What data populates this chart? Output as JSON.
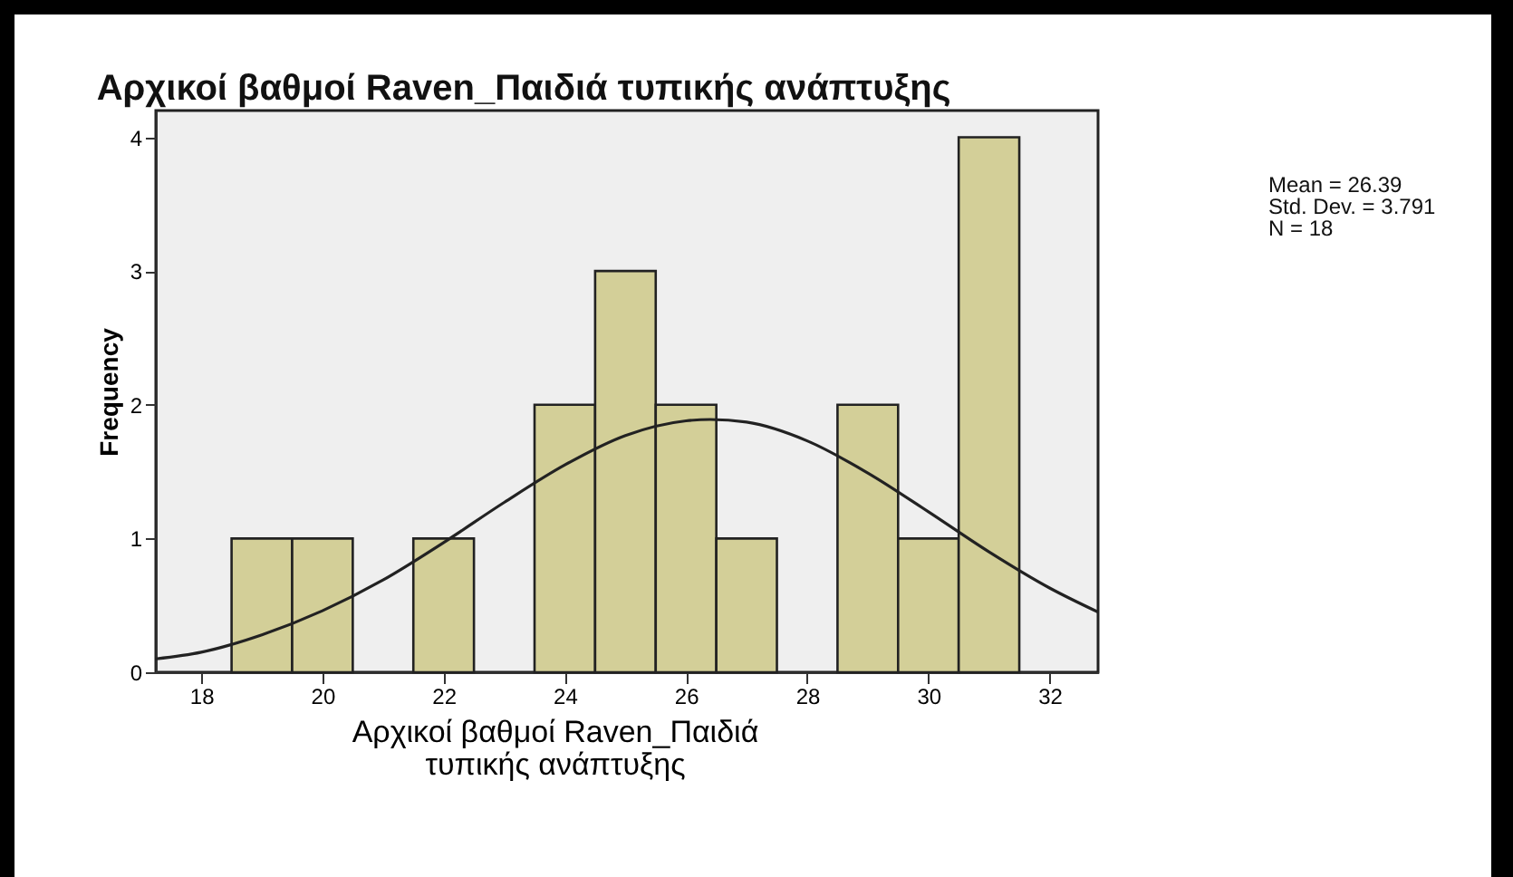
{
  "chart_data": {
    "type": "histogram",
    "title": "Αρχικοί βαθμοί Raven_Παιδιά τυπικής ανάπτυξης",
    "xlabel": "Αρχικοί βαθμοί Raven_Παιδιά τυπικής ανάπτυξης",
    "ylabel": "Frequency",
    "bins": [
      18.5,
      19.5,
      20.5,
      21.5,
      22.5,
      23.5,
      24.5,
      25.5,
      26.5,
      27.5,
      28.5,
      29.5,
      30.5,
      31.5
    ],
    "values": [
      1,
      1,
      0,
      1,
      0,
      2,
      3,
      2,
      1,
      0,
      2,
      1,
      4
    ],
    "color": "#d3cf98",
    "series": [
      {
        "type": "line",
        "color": "#222222",
        "x": [
          17.25,
          18,
          19,
          20,
          21,
          22,
          23,
          24,
          25,
          26,
          26.4,
          27,
          28,
          29,
          30,
          31,
          32,
          32.8
        ],
        "values": [
          0.1,
          0.15,
          0.28,
          0.46,
          0.69,
          0.97,
          1.27,
          1.55,
          1.77,
          1.88,
          1.89,
          1.87,
          1.73,
          1.49,
          1.2,
          0.9,
          0.63,
          0.45
        ]
      }
    ],
    "xlim": [
      17.25,
      32.8
    ],
    "xticks": [
      18,
      20,
      22,
      24,
      26,
      28,
      30,
      32
    ],
    "ylim": [
      0,
      4.2
    ],
    "yticks": [
      0,
      1,
      2,
      3,
      4
    ],
    "grid": false,
    "annotations": [
      "Mean = 26.39",
      "Std. Dev. = 3.791",
      "N = 18"
    ]
  }
}
